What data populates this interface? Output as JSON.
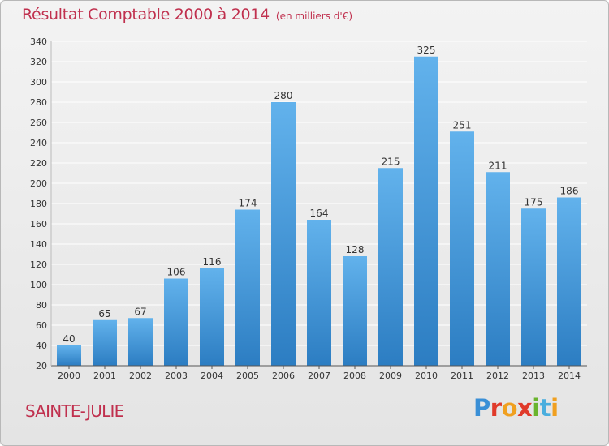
{
  "header": {
    "title": "Résultat Comptable 2000 à 2014",
    "subtitle": "(en milliers d'€)"
  },
  "footer": {
    "commune": "SAINTE-JULIE",
    "logo_parts": [
      "P",
      "r",
      "o",
      "x",
      "i",
      "t",
      "i"
    ]
  },
  "colors": {
    "title": "#c0304e",
    "bar_light": "#62b2ec",
    "bar_dark": "#2c7dc2",
    "grid": "#ffffff"
  },
  "chart_data": {
    "type": "bar",
    "title": "Résultat Comptable 2000 à 2014",
    "subtitle": "(en milliers d'€)",
    "categories": [
      "2000",
      "2001",
      "2002",
      "2003",
      "2004",
      "2005",
      "2006",
      "2007",
      "2008",
      "2009",
      "2010",
      "2011",
      "2012",
      "2013",
      "2014"
    ],
    "values": [
      40,
      65,
      67,
      106,
      116,
      174,
      280,
      164,
      128,
      215,
      325,
      251,
      211,
      175,
      186
    ],
    "xlabel": "",
    "ylabel": "",
    "ylim": [
      20,
      340
    ],
    "yticks": [
      20,
      40,
      60,
      80,
      100,
      120,
      140,
      160,
      180,
      200,
      220,
      240,
      260,
      280,
      300,
      320,
      340
    ],
    "grid": true
  }
}
